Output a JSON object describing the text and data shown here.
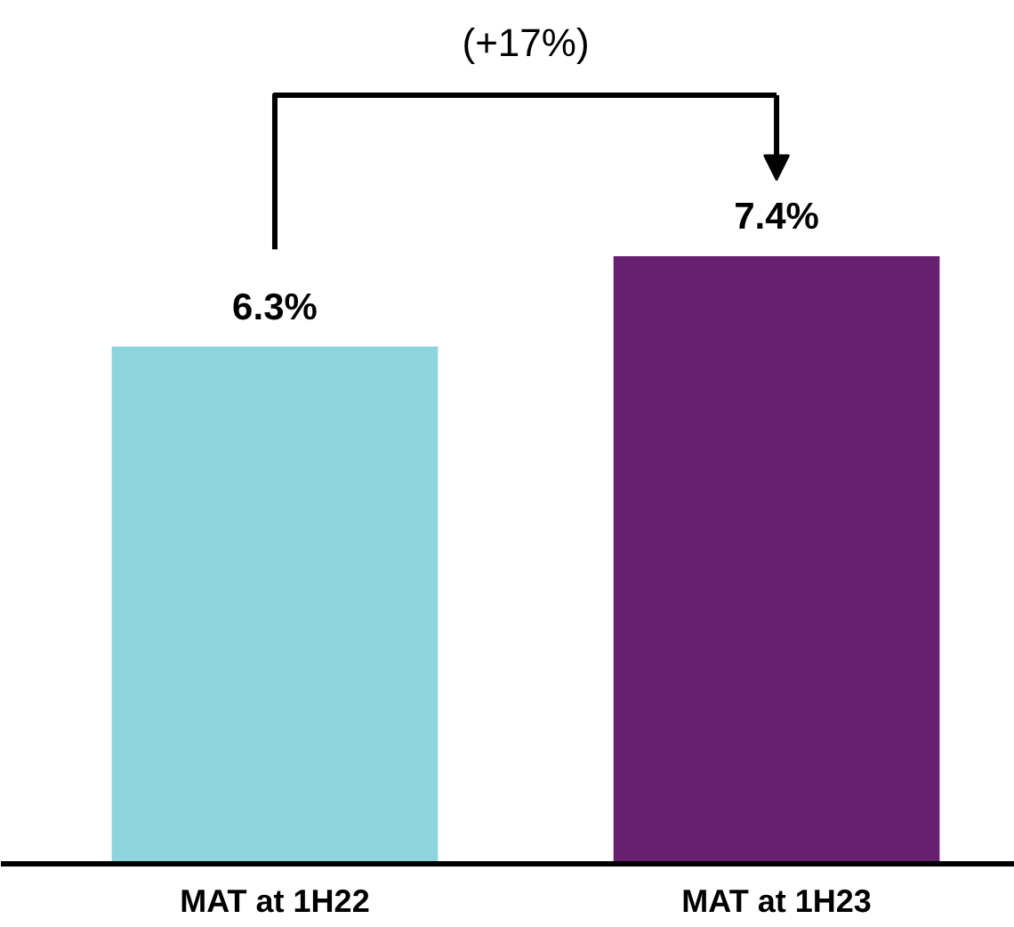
{
  "chart_data": {
    "type": "bar",
    "categories": [
      "MAT at 1H22",
      "MAT at 1H23"
    ],
    "values": [
      6.3,
      7.4
    ],
    "colors": [
      "#8dd4dc",
      "#67206f"
    ],
    "value_labels": [
      "6.3%",
      "7.4%"
    ],
    "annotations": [
      "(+17%)"
    ]
  }
}
